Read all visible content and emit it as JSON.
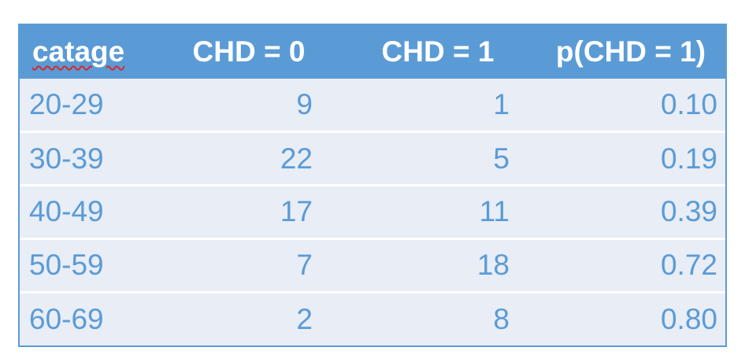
{
  "table": {
    "headers": {
      "catage": "catage",
      "chd0": "CHD = 0",
      "chd1": "CHD = 1",
      "p": "p(CHD = 1)"
    },
    "rows": [
      {
        "catage": "20-29",
        "chd0": "9",
        "chd1": "1",
        "p": "0.10"
      },
      {
        "catage": "30-39",
        "chd0": "22",
        "chd1": "5",
        "p": "0.19"
      },
      {
        "catage": "40-49",
        "chd0": "17",
        "chd1": "11",
        "p": "0.39"
      },
      {
        "catage": "50-59",
        "chd0": "7",
        "chd1": "18",
        "p": "0.72"
      },
      {
        "catage": "60-69",
        "chd0": "2",
        "chd1": "8",
        "p": "0.80"
      }
    ]
  },
  "colors": {
    "header_bg": "#5b9bd5",
    "row_bg": "#e8edf6",
    "text": "#5b9bd5",
    "header_text": "#ffffff",
    "spellcheck_underline": "#d62a2a"
  }
}
